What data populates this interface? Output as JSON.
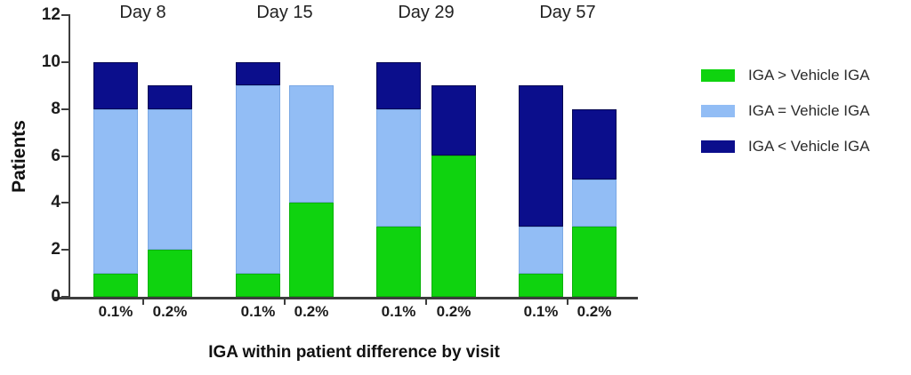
{
  "colors": {
    "axis": "#3d3d3d",
    "text": "#1c1c1c",
    "background": "#ffffff"
  },
  "chart_data": {
    "type": "bar",
    "stacked": true,
    "title": "",
    "ylabel": "Patients",
    "xlabel": "IGA within patient difference by visit",
    "ylim": [
      0,
      12
    ],
    "yticks": [
      0,
      2,
      4,
      6,
      8,
      10,
      12
    ],
    "grid": false,
    "legend_position": "right",
    "series_order": [
      "gt",
      "eq",
      "lt"
    ],
    "legend": [
      {
        "key": "gt",
        "label": "IGA > Vehicle IGA",
        "color": "#0fd30f",
        "border": "#0bb20b"
      },
      {
        "key": "eq",
        "label": "IGA = Vehicle IGA",
        "color": "#92bdf5",
        "border": "#7aa8e4"
      },
      {
        "key": "lt",
        "label": "IGA < Vehicle IGA",
        "color": "#0b0e8c",
        "border": "#060752"
      }
    ],
    "groups": [
      {
        "label": "Day 8",
        "bars": [
          {
            "label": "0.1%",
            "gt": 1,
            "eq": 7,
            "lt": 2,
            "total": 10
          },
          {
            "label": "0.2%",
            "gt": 2,
            "eq": 6,
            "lt": 1,
            "total": 9
          }
        ]
      },
      {
        "label": "Day 15",
        "bars": [
          {
            "label": "0.1%",
            "gt": 1,
            "eq": 8,
            "lt": 1,
            "total": 10
          },
          {
            "label": "0.2%",
            "gt": 4,
            "eq": 5,
            "lt": 0,
            "total": 9
          }
        ]
      },
      {
        "label": "Day 29",
        "bars": [
          {
            "label": "0.1%",
            "gt": 3,
            "eq": 5,
            "lt": 2,
            "total": 10
          },
          {
            "label": "0.2%",
            "gt": 6,
            "eq": 0,
            "lt": 3,
            "total": 9
          }
        ]
      },
      {
        "label": "Day 57",
        "bars": [
          {
            "label": "0.1%",
            "gt": 1,
            "eq": 2,
            "lt": 6,
            "total": 9
          },
          {
            "label": "0.2%",
            "gt": 3,
            "eq": 2,
            "lt": 3,
            "total": 8
          }
        ]
      }
    ]
  }
}
